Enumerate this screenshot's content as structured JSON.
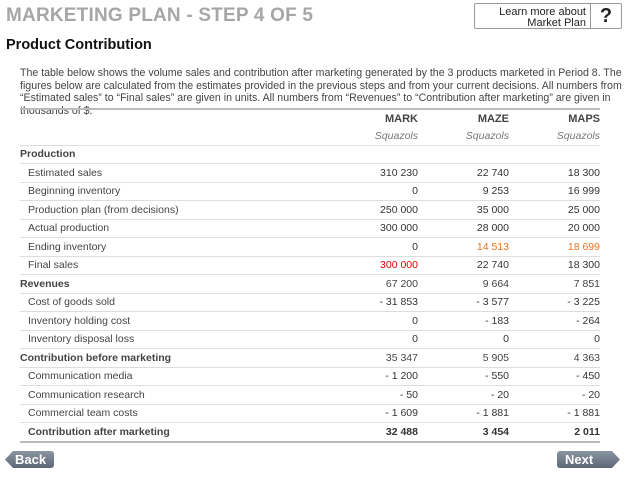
{
  "title": "MARKETING PLAN - STEP 4 OF 5",
  "help": {
    "label": "Learn more about Market Plan",
    "icon": "?"
  },
  "subtitle": "Product Contribution",
  "intro": "The table below shows the volume sales and contribution after marketing generated by the 3 products marketed in Period 8. The figures below are calculated from the estimates provided in the previous steps and from your current decisions. All numbers from “Estimated sales” to “Final sales” are given in units. All numbers from “Revenues” to “Contribution after marketing” are given in thousands of $.",
  "columns": [
    "MARK",
    "MAZE",
    "MAPS"
  ],
  "units": [
    "Squazols",
    "Squazols",
    "Squazols"
  ],
  "rows": [
    {
      "label": "Production",
      "type": "section",
      "values": [
        "",
        "",
        ""
      ]
    },
    {
      "label": "Estimated sales",
      "values": [
        "310 230",
        "22 740",
        "18 300"
      ]
    },
    {
      "label": "Beginning inventory",
      "values": [
        "0",
        "9 253",
        "16 999"
      ]
    },
    {
      "label": "Production plan (from decisions)",
      "values": [
        "250 000",
        "35 000",
        "25 000"
      ]
    },
    {
      "label": "Actual production",
      "values": [
        "300 000",
        "28 000",
        "20 000"
      ]
    },
    {
      "label": "Ending inventory",
      "values": [
        "0",
        "14 513",
        "18 699"
      ],
      "colors": [
        "",
        "orange",
        "orange"
      ]
    },
    {
      "label": "Final sales",
      "values": [
        "300 000",
        "22 740",
        "18 300"
      ],
      "colors": [
        "red",
        "",
        ""
      ]
    },
    {
      "label": "Revenues",
      "type": "section",
      "values": [
        "67 200",
        "9 664",
        "7 851"
      ]
    },
    {
      "label": "Cost of goods sold",
      "values": [
        "- 31 853",
        "- 3 577",
        "- 3 225"
      ]
    },
    {
      "label": "Inventory holding cost",
      "values": [
        "0",
        "- 183",
        "- 264"
      ]
    },
    {
      "label": "Inventory disposal loss",
      "values": [
        "0",
        "0",
        "0"
      ]
    },
    {
      "label": "Contribution before marketing",
      "type": "section",
      "values": [
        "35 347",
        "5 905",
        "4 363"
      ]
    },
    {
      "label": "Communication media",
      "values": [
        "- 1 200",
        "- 550",
        "- 450"
      ]
    },
    {
      "label": "Communication research",
      "values": [
        "- 50",
        "- 20",
        "- 20"
      ]
    },
    {
      "label": "Commercial team costs",
      "values": [
        "- 1 609",
        "- 1 881",
        "- 1 881"
      ]
    },
    {
      "label": "Contribution after marketing",
      "type": "final",
      "values": [
        "32 488",
        "3 454",
        "2 011"
      ]
    }
  ],
  "colors": {
    "red": "#e00000",
    "orange": "#e8731c",
    "title": "#a6a6a6"
  },
  "nav": {
    "back": "Back",
    "next": "Next"
  }
}
